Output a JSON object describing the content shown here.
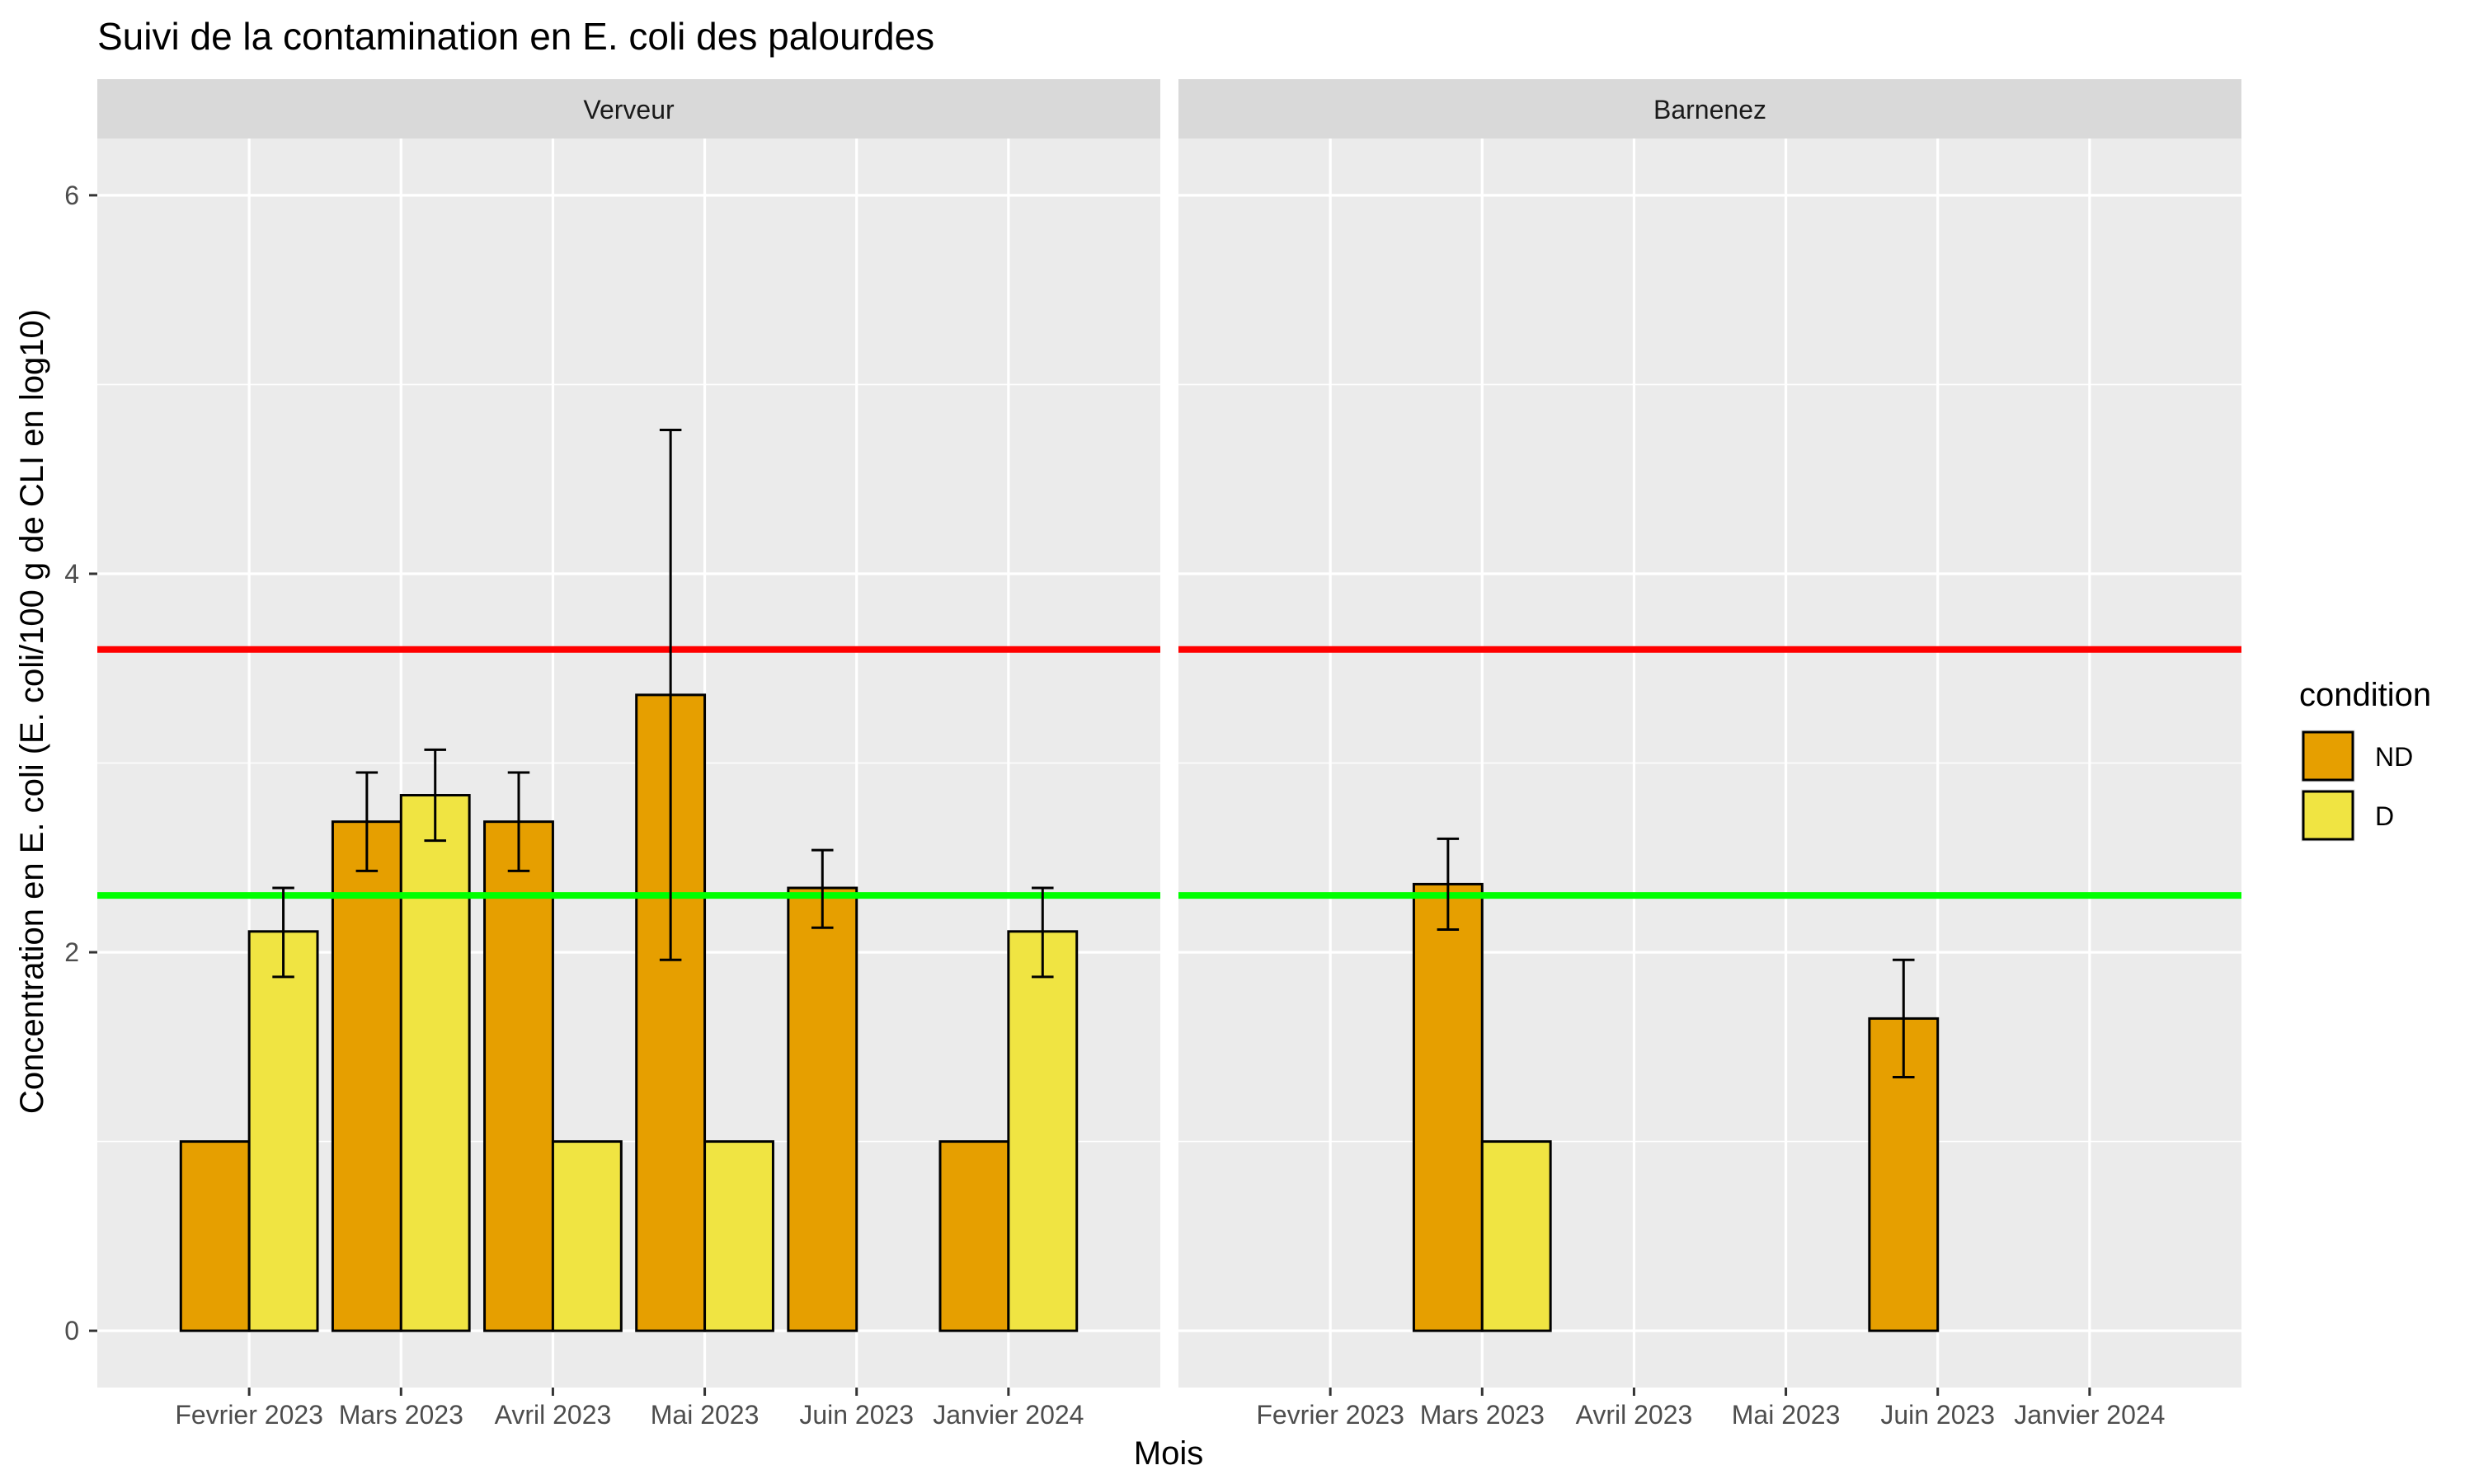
{
  "chart_data": {
    "type": "bar",
    "title": "Suivi de la contamination en E. coli des palourdes",
    "xlabel": "Mois",
    "ylabel": "Concentration en E. coli (E. coli/100 g de CLI en log10)",
    "categories": [
      "Fevrier 2023",
      "Mars 2023",
      "Avril 2023",
      "Mai 2023",
      "Juin 2023",
      "Janvier 2024"
    ],
    "ylim": [
      -0.3,
      6.3
    ],
    "yticks": [
      0,
      2,
      4,
      6
    ],
    "grid": true,
    "legend": {
      "title": "condition",
      "placement": "right",
      "items": [
        {
          "label": "ND",
          "color": "#E69F00"
        },
        {
          "label": "D",
          "color": "#F0E442"
        }
      ]
    },
    "reference_lines": [
      {
        "y": 3.6,
        "color": "#FF0000"
      },
      {
        "y": 2.3,
        "color": "#00FF00"
      }
    ],
    "panels": [
      {
        "label": "Verveur",
        "series": [
          {
            "name": "ND",
            "values": [
              1.0,
              2.69,
              2.69,
              3.36,
              2.34,
              1.0
            ],
            "lower": [
              null,
              2.43,
              2.43,
              1.96,
              2.13,
              null
            ],
            "upper": [
              null,
              2.95,
              2.95,
              4.76,
              2.54,
              null
            ]
          },
          {
            "name": "D",
            "values": [
              2.11,
              2.83,
              1.0,
              1.0,
              0.0,
              2.11
            ],
            "lower": [
              1.87,
              2.59,
              null,
              null,
              null,
              1.87
            ],
            "upper": [
              2.34,
              3.07,
              null,
              null,
              null,
              2.34
            ]
          }
        ]
      },
      {
        "label": "Barnenez",
        "series": [
          {
            "name": "ND",
            "values": [
              null,
              2.36,
              null,
              null,
              1.65,
              null
            ],
            "lower": [
              null,
              2.12,
              null,
              null,
              1.34,
              null
            ],
            "upper": [
              null,
              2.6,
              null,
              null,
              1.96,
              null
            ]
          },
          {
            "name": "D",
            "values": [
              null,
              1.0,
              null,
              null,
              0.0,
              null
            ],
            "lower": [
              null,
              null,
              null,
              null,
              null,
              null
            ],
            "upper": [
              null,
              null,
              null,
              null,
              null,
              null
            ]
          }
        ]
      }
    ]
  }
}
